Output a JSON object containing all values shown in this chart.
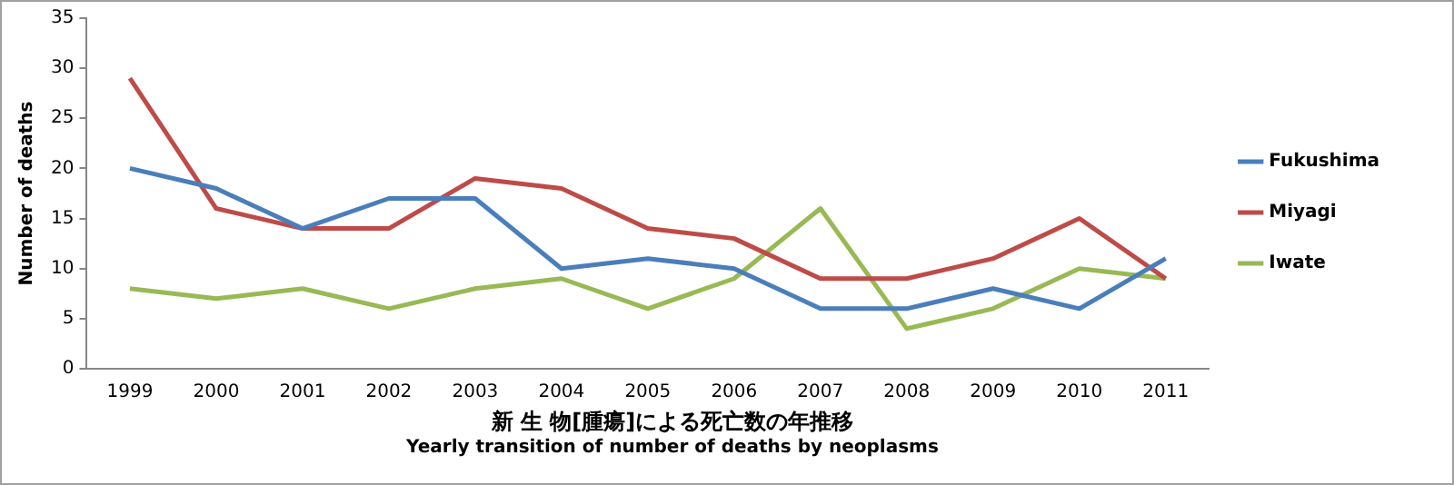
{
  "chart_data": {
    "type": "line",
    "title": "新 生 物[腫瘍]による死亡数の年推移",
    "subtitle": "Yearly transition of number of deaths by neoplasms",
    "ylabel": "Number of deaths",
    "categories": [
      "1999",
      "2000",
      "2001",
      "2002",
      "2003",
      "2004",
      "2005",
      "2006",
      "2007",
      "2008",
      "2009",
      "2010",
      "2011"
    ],
    "series": [
      {
        "name": "Fukushima",
        "color": "#4a7ebb",
        "values": [
          20,
          18,
          14,
          17,
          17,
          10,
          11,
          10,
          6,
          6,
          8,
          6,
          11
        ]
      },
      {
        "name": "Miyagi",
        "color": "#be4b48",
        "values": [
          29,
          16,
          14,
          14,
          19,
          18,
          14,
          13,
          9,
          9,
          11,
          15,
          9
        ]
      },
      {
        "name": "Iwate",
        "color": "#98b954",
        "values": [
          8,
          7,
          8,
          6,
          8,
          9,
          6,
          9,
          16,
          4,
          6,
          10,
          9
        ]
      }
    ],
    "ylim": [
      0,
      35
    ],
    "yticks": [
      0,
      5,
      10,
      15,
      20,
      25,
      30,
      35
    ],
    "grid": false,
    "legend": "right",
    "marker": "none",
    "line_style": "solid"
  }
}
